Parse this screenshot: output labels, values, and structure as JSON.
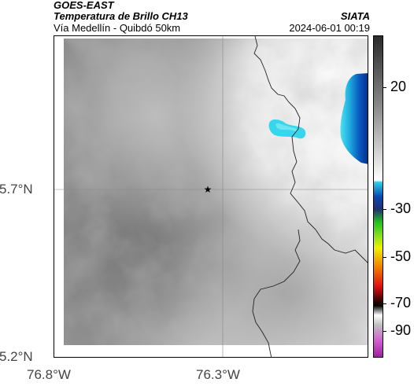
{
  "header": {
    "satellite": "GOES-EAST",
    "product": "Temperatura de Brillo CH13",
    "region": "Vía Medellín - Quibdó 50km",
    "agency": "SIATA",
    "datetime": "2024-06-01 00:19"
  },
  "map": {
    "lat_ticks": [
      {
        "value": 5.7,
        "label": "5.7°N"
      },
      {
        "value": 5.2,
        "label": "5.2°N"
      }
    ],
    "lon_ticks": [
      {
        "value": -76.8,
        "label": "76.8°W"
      },
      {
        "value": -76.3,
        "label": "76.3°W"
      }
    ],
    "marker": "star-icon"
  },
  "colorbar": {
    "ticks": [
      {
        "value": 20,
        "label": "20"
      },
      {
        "value": -30,
        "label": "-30"
      },
      {
        "value": -50,
        "label": "-50"
      },
      {
        "value": -70,
        "label": "-70"
      },
      {
        "value": -90,
        "label": "-90"
      }
    ],
    "colors": {
      "warm": "#303030",
      "mid": "#d8d8d8",
      "cyan": "#33d0e8",
      "blue": "#0a3a9a",
      "green": "#20c020",
      "yellow": "#f0f000",
      "red": "#e01010",
      "black": "#000000",
      "magenta": "#c040c0"
    }
  }
}
